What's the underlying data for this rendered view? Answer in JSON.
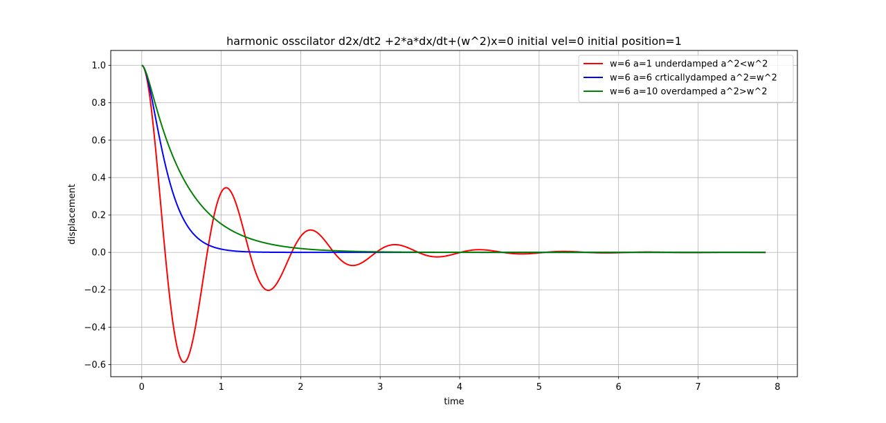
{
  "chart_data": {
    "type": "line",
    "title": "harmonic osscilator d2x/dt2 +2*a*dx/dt+(w^2)x=0 initial vel=0 initial position=1",
    "xlabel": "time",
    "ylabel": "displacement",
    "xlim": [
      -0.39,
      8.25
    ],
    "ylim": [
      -0.665,
      1.08
    ],
    "x_ticks": [
      0,
      1,
      2,
      3,
      4,
      5,
      6,
      7,
      8
    ],
    "x_tick_labels": [
      "0",
      "1",
      "2",
      "3",
      "4",
      "5",
      "6",
      "7",
      "8"
    ],
    "y_ticks": [
      -0.6,
      -0.4,
      -0.2,
      0.0,
      0.2,
      0.4,
      0.6,
      0.8,
      1.0
    ],
    "y_tick_labels": [
      "−0.6",
      "−0.4",
      "−0.2",
      "0.0",
      "0.2",
      "0.4",
      "0.6",
      "0.8",
      "1.0"
    ],
    "grid": true,
    "legend_position": "top-right",
    "x_range": [
      0,
      7.85
    ],
    "series": [
      {
        "name": "w=6 a=1 underdamped a^2<w^2",
        "color": "#ff0000",
        "w": 6,
        "a": 1,
        "key_points": [
          {
            "x": 0.0,
            "y": 1.0
          },
          {
            "x": 0.53,
            "y": -0.59
          },
          {
            "x": 1.06,
            "y": 0.35
          },
          {
            "x": 1.59,
            "y": -0.205
          },
          {
            "x": 2.12,
            "y": 0.12
          },
          {
            "x": 2.65,
            "y": -0.07
          },
          {
            "x": 3.18,
            "y": 0.043
          },
          {
            "x": 3.71,
            "y": -0.025
          },
          {
            "x": 4.24,
            "y": 0.015
          }
        ]
      },
      {
        "name": "w=6 a=6 crticallydamped a^2=w^2",
        "color": "#0000ff",
        "w": 6,
        "a": 6,
        "key_points": [
          {
            "x": 0.0,
            "y": 1.0
          },
          {
            "x": 0.5,
            "y": 0.2
          },
          {
            "x": 1.0,
            "y": 0.017
          },
          {
            "x": 2.0,
            "y": 0.0
          }
        ]
      },
      {
        "name": "w=6 a=10 overdamped a^2>w^2",
        "color": "#008000",
        "w": 6,
        "a": 10,
        "key_points": [
          {
            "x": 0.0,
            "y": 1.0
          },
          {
            "x": 0.5,
            "y": 0.39
          },
          {
            "x": 1.0,
            "y": 0.15
          },
          {
            "x": 2.0,
            "y": 0.02
          },
          {
            "x": 3.0,
            "y": 0.003
          }
        ]
      }
    ]
  }
}
